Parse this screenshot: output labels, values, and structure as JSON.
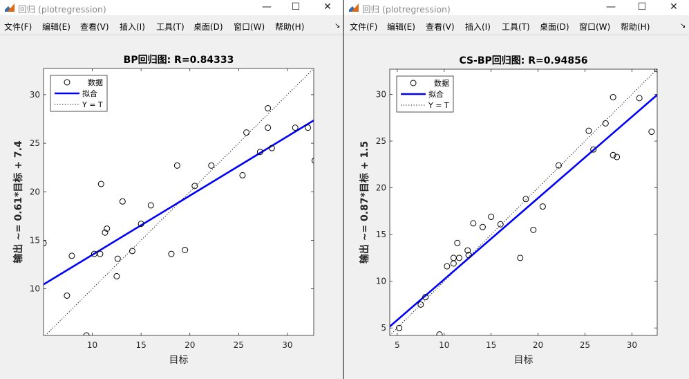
{
  "windows": [
    {
      "title": "回归 (plotregression)",
      "menu": [
        "文件(F)",
        "编辑(E)",
        "查看(V)",
        "插入(I)",
        "工具(T)",
        "桌面(D)",
        "窗口(W)",
        "帮助(H)"
      ],
      "controls": {
        "minimize": "—",
        "maximize": "☐",
        "close": "✕"
      },
      "chart_data": {
        "type": "scatter",
        "title": "BP回归图: R=0.84333",
        "xlabel": "目标",
        "ylabel": "输出 ~= 0.61*目标 + 7.4",
        "xlim": [
          5,
          32.7
        ],
        "ylim": [
          5.2,
          32.7
        ],
        "xticks": [
          10,
          15,
          20,
          25,
          30
        ],
        "yticks": [
          10,
          15,
          20,
          25,
          30
        ],
        "grid": false,
        "legend": {
          "position": "top-left",
          "entries": [
            "数据",
            "拟合",
            "Y = T"
          ]
        },
        "fit": {
          "slope": 0.61,
          "intercept": 7.4,
          "color": "#0000ff"
        },
        "points": [
          [
            5,
            14.7
          ],
          [
            7.4,
            9.3
          ],
          [
            7.9,
            13.4
          ],
          [
            9.4,
            5.2
          ],
          [
            10.2,
            13.6
          ],
          [
            10.8,
            13.6
          ],
          [
            10.9,
            20.8
          ],
          [
            11.3,
            15.8
          ],
          [
            11.5,
            16.2
          ],
          [
            12.5,
            11.3
          ],
          [
            12.6,
            13.1
          ],
          [
            13.1,
            19
          ],
          [
            14.1,
            13.9
          ],
          [
            15,
            16.7
          ],
          [
            16,
            18.6
          ],
          [
            18.1,
            13.6
          ],
          [
            18.7,
            22.7
          ],
          [
            19.5,
            14
          ],
          [
            20.5,
            20.6
          ],
          [
            22.2,
            22.7
          ],
          [
            25.4,
            21.7
          ],
          [
            25.8,
            26.1
          ],
          [
            27.2,
            24.1
          ],
          [
            28,
            26.6
          ],
          [
            28,
            28.6
          ],
          [
            28.4,
            24.5
          ],
          [
            30.8,
            26.6
          ],
          [
            32.1,
            26.6
          ],
          [
            32.8,
            23.2
          ]
        ]
      }
    },
    {
      "title": "回归 (plotregression)",
      "menu": [
        "文件(F)",
        "编辑(E)",
        "查看(V)",
        "插入(I)",
        "工具(T)",
        "桌面(D)",
        "窗口(W)",
        "帮助(H)"
      ],
      "controls": {
        "minimize": "—",
        "maximize": "☐",
        "close": "✕"
      },
      "chart_data": {
        "type": "scatter",
        "title": "CS-BP回归图: R=0.94856",
        "xlabel": "目标",
        "ylabel": "输出 ~= 0.87*目标 + 1.5",
        "xlim": [
          4.2,
          32.7
        ],
        "ylim": [
          4.2,
          32.7
        ],
        "xticks": [
          5,
          10,
          15,
          20,
          25,
          30
        ],
        "yticks": [
          5,
          10,
          15,
          20,
          25,
          30
        ],
        "grid": false,
        "legend": {
          "position": "top-left",
          "entries": [
            "数据",
            "拟合",
            "Y = T"
          ]
        },
        "fit": {
          "slope": 0.87,
          "intercept": 1.5,
          "color": "#0000ff"
        },
        "points": [
          [
            5.2,
            5
          ],
          [
            7.5,
            7.5
          ],
          [
            8,
            8.3
          ],
          [
            9.5,
            4.3
          ],
          [
            10.3,
            11.6
          ],
          [
            11,
            11.9
          ],
          [
            11,
            12.5
          ],
          [
            11.4,
            14.1
          ],
          [
            11.6,
            12.5
          ],
          [
            12.5,
            13.3
          ],
          [
            12.6,
            12.8
          ],
          [
            13.1,
            16.2
          ],
          [
            14.1,
            15.8
          ],
          [
            15,
            16.9
          ],
          [
            16,
            16.1
          ],
          [
            18.1,
            12.5
          ],
          [
            18.7,
            18.8
          ],
          [
            19.5,
            15.5
          ],
          [
            20.5,
            18
          ],
          [
            22.2,
            22.4
          ],
          [
            25.4,
            26.1
          ],
          [
            25.9,
            24.1
          ],
          [
            27.2,
            26.9
          ],
          [
            28,
            29.7
          ],
          [
            28,
            23.5
          ],
          [
            28.4,
            23.3
          ],
          [
            30.8,
            29.6
          ],
          [
            32.1,
            26
          ],
          [
            32.7,
            32.7
          ]
        ]
      }
    }
  ]
}
